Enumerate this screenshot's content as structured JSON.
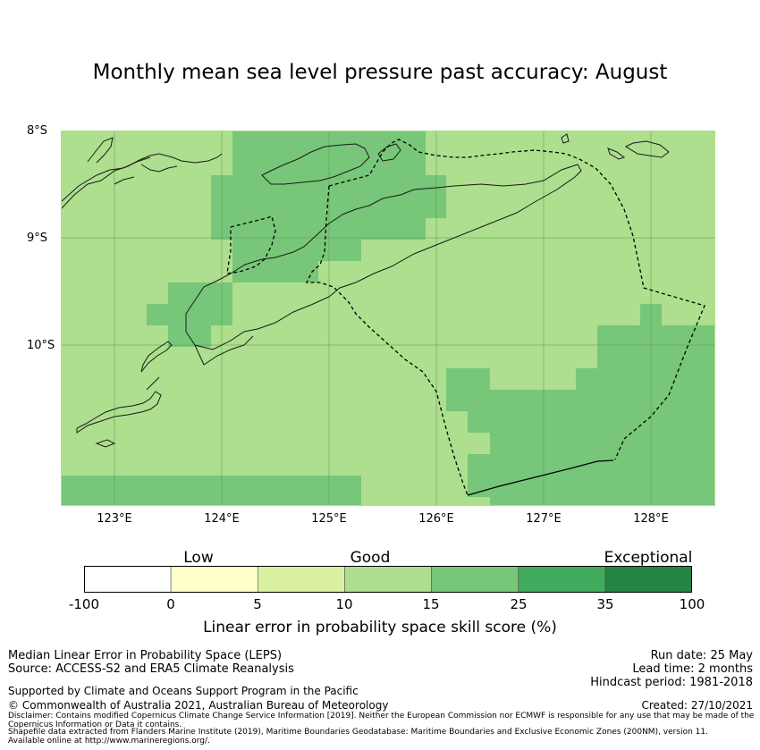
{
  "title": "Monthly mean sea level pressure past accuracy: August",
  "map": {
    "lat_ticks": [
      "8°S",
      "9°S",
      "10°S"
    ],
    "lon_ticks": [
      "123°E",
      "124°E",
      "125°E",
      "126°E",
      "127°E",
      "128°E"
    ],
    "background_color": "#addf8e",
    "highlight_color": "#78c679",
    "gridline_color": "#5a9b4a"
  },
  "colorbar": {
    "categories": [
      "Low",
      "Good",
      "Exceptional"
    ],
    "tick_labels": [
      "-100",
      "0",
      "5",
      "10",
      "15",
      "25",
      "35",
      "100"
    ],
    "colors": [
      "#ffffff",
      "#ffffcc",
      "#d9f0a3",
      "#addd8e",
      "#78c679",
      "#41ab5d",
      "#238443"
    ],
    "label": "Linear error in probability space skill score (%)"
  },
  "footer": {
    "left_line1": "Median Linear Error in Probability Space (LEPS)",
    "left_line2": "Source: ACCESS-S2 and ERA5 Climate Reanalysis",
    "supported": "Supported by Climate and Oceans Support Program in the Pacific",
    "copyright": "© Commonwealth of Australia 2021, Australian Bureau of Meteorology",
    "disclaimer": "Disclaimer: Contains modified Copernicus Climate Change Service Information [2019]. Neither the European Commission nor ECMWF is responsible for any use that may be made of the Copernicus Information or Data it contains.",
    "shapefile": "Shapefile data extracted from Flanders Marine Institute (2019), Maritime Boundaries Geodatabase: Maritime Boundaries and Exclusive Economic Zones (200NM), version 11. Available online at http://www.marineregions.org/.",
    "run_date": "Run date: 25 May",
    "lead_time": "Lead time: 2 months",
    "hindcast": "Hindcast period: 1981-2018",
    "created": "Created: 27/10/2021"
  }
}
